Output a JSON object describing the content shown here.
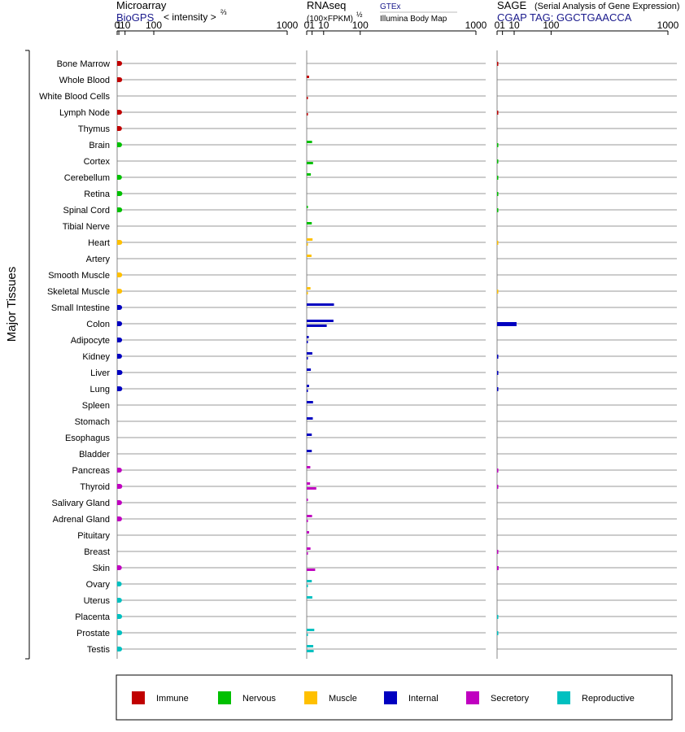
{
  "chart_data": {
    "type": "bar",
    "panels": [
      {
        "id": "microarray",
        "title": "Microarray",
        "source": "BioGPS",
        "unit": "< intensity >",
        "unit_power": "⅔",
        "ticks": [
          "0",
          "1",
          "10",
          "100",
          "1000"
        ],
        "scale": "power-2/3",
        "xlim": [
          0,
          1000
        ]
      },
      {
        "id": "rnaseq",
        "title": "RNAseq",
        "unit": "(100×FPKM)",
        "unit_power": "½",
        "source_primary": "GTEx",
        "source_secondary": "Illumina Body Map",
        "ticks": [
          "0",
          "1",
          "10",
          "100",
          "1000"
        ],
        "scale": "sqrt",
        "xlim": [
          0,
          1000
        ]
      },
      {
        "id": "sage",
        "title": "SAGE",
        "subtitle": "(Serial Analysis of Gene Expression)",
        "source": "CGAP  TAG: GGCTGAACCA",
        "ticks": [
          "0",
          "1",
          "10",
          "100",
          "1000"
        ],
        "scale": "sqrt",
        "xlim": [
          0,
          1000
        ]
      }
    ],
    "y_axis_label": "Major Tissues",
    "tissues": [
      {
        "name": "Bone Marrow",
        "group": "Immune",
        "microarray": 1.8,
        "rnaseq_gtex": null,
        "rnaseq_ibm": null,
        "sage": 0.01
      },
      {
        "name": "Whole Blood",
        "group": "Immune",
        "microarray": 1.9,
        "rnaseq_gtex": 0.2,
        "rnaseq_ibm": null,
        "sage": null
      },
      {
        "name": "White Blood Cells",
        "group": "Immune",
        "microarray": null,
        "rnaseq_gtex": null,
        "rnaseq_ibm": 0.002,
        "sage": null
      },
      {
        "name": "Lymph Node",
        "group": "Immune",
        "microarray": 1.7,
        "rnaseq_gtex": null,
        "rnaseq_ibm": 0.002,
        "sage": 0.01
      },
      {
        "name": "Thymus",
        "group": "Immune",
        "microarray": 1.6,
        "rnaseq_gtex": null,
        "rnaseq_ibm": null,
        "sage": null
      },
      {
        "name": "Brain",
        "group": "Nervous",
        "microarray": 1.7,
        "rnaseq_gtex": 1.0,
        "rnaseq_ibm": null,
        "sage": 0.005
      },
      {
        "name": "Cortex",
        "group": "Nervous",
        "microarray": null,
        "rnaseq_gtex": null,
        "rnaseq_ibm": 1.4,
        "sage": 0.005
      },
      {
        "name": "Cerebellum",
        "group": "Nervous",
        "microarray": 1.6,
        "rnaseq_gtex": 0.6,
        "rnaseq_ibm": null,
        "sage": 0.005
      },
      {
        "name": "Retina",
        "group": "Nervous",
        "microarray": 2.1,
        "rnaseq_gtex": null,
        "rnaseq_ibm": null,
        "sage": 0.005
      },
      {
        "name": "Spinal Cord",
        "group": "Nervous",
        "microarray": 1.9,
        "rnaseq_gtex": 0.002,
        "rnaseq_ibm": null,
        "sage": 0.005
      },
      {
        "name": "Tibial Nerve",
        "group": "Nervous",
        "microarray": null,
        "rnaseq_gtex": 0.9,
        "rnaseq_ibm": null,
        "sage": null
      },
      {
        "name": "Heart",
        "group": "Muscle",
        "microarray": 2.0,
        "rnaseq_gtex": 1.2,
        "rnaseq_ibm": 0.002,
        "sage": 0.002
      },
      {
        "name": "Artery",
        "group": "Muscle",
        "microarray": null,
        "rnaseq_gtex": 0.8,
        "rnaseq_ibm": null,
        "sage": null
      },
      {
        "name": "Smooth Muscle",
        "group": "Muscle",
        "microarray": 1.9,
        "rnaseq_gtex": null,
        "rnaseq_ibm": null,
        "sage": null
      },
      {
        "name": "Skeletal Muscle",
        "group": "Muscle",
        "microarray": 1.9,
        "rnaseq_gtex": 0.5,
        "rnaseq_ibm": 0.002,
        "sage": 0.002
      },
      {
        "name": "Small Intestine",
        "group": "Internal",
        "microarray": 1.8,
        "rnaseq_gtex": 26,
        "rnaseq_ibm": null,
        "sage": null
      },
      {
        "name": "Colon",
        "group": "Internal",
        "microarray": 1.8,
        "rnaseq_gtex": 25,
        "rnaseq_ibm": 14,
        "sage": 13
      },
      {
        "name": "Adipocyte",
        "group": "Internal",
        "microarray": 1.8,
        "rnaseq_gtex": 0.15,
        "rnaseq_ibm": 0.002,
        "sage": null
      },
      {
        "name": "Kidney",
        "group": "Internal",
        "microarray": 1.7,
        "rnaseq_gtex": 1.1,
        "rnaseq_ibm": 0.002,
        "sage": 0.02
      },
      {
        "name": "Liver",
        "group": "Internal",
        "microarray": 2.2,
        "rnaseq_gtex": 0.6,
        "rnaseq_ibm": null,
        "sage": 0.02
      },
      {
        "name": "Lung",
        "group": "Internal",
        "microarray": 2.0,
        "rnaseq_gtex": 0.2,
        "rnaseq_ibm": 0.002,
        "sage": 0.02
      },
      {
        "name": "Spleen",
        "group": "Internal",
        "microarray": null,
        "rnaseq_gtex": 1.4,
        "rnaseq_ibm": null,
        "sage": null
      },
      {
        "name": "Stomach",
        "group": "Internal",
        "microarray": null,
        "rnaseq_gtex": 1.3,
        "rnaseq_ibm": null,
        "sage": null
      },
      {
        "name": "Esophagus",
        "group": "Internal",
        "microarray": null,
        "rnaseq_gtex": 0.9,
        "rnaseq_ibm": null,
        "sage": null
      },
      {
        "name": "Bladder",
        "group": "Internal",
        "microarray": null,
        "rnaseq_gtex": 0.9,
        "rnaseq_ibm": null,
        "sage": null
      },
      {
        "name": "Pancreas",
        "group": "Secretory",
        "microarray": 1.6,
        "rnaseq_gtex": 0.45,
        "rnaseq_ibm": null,
        "sage": 0.01
      },
      {
        "name": "Thyroid",
        "group": "Secretory",
        "microarray": 2.0,
        "rnaseq_gtex": 0.4,
        "rnaseq_ibm": 3.2,
        "sage": 0.01
      },
      {
        "name": "Salivary Gland",
        "group": "Secretory",
        "microarray": 1.7,
        "rnaseq_gtex": 0.002,
        "rnaseq_ibm": null,
        "sage": null
      },
      {
        "name": "Adrenal Gland",
        "group": "Secretory",
        "microarray": 1.7,
        "rnaseq_gtex": 1.0,
        "rnaseq_ibm": 0.002,
        "sage": null
      },
      {
        "name": "Pituitary",
        "group": "Secretory",
        "microarray": null,
        "rnaseq_gtex": 0.2,
        "rnaseq_ibm": null,
        "sage": null
      },
      {
        "name": "Breast",
        "group": "Secretory",
        "microarray": null,
        "rnaseq_gtex": 0.5,
        "rnaseq_ibm": 0.002,
        "sage": 0.01
      },
      {
        "name": "Skin",
        "group": "Secretory",
        "microarray": 1.5,
        "rnaseq_gtex": null,
        "rnaseq_ibm": 2.5,
        "sage": 0.08
      },
      {
        "name": "Ovary",
        "group": "Reproductive",
        "microarray": 1.4,
        "rnaseq_gtex": 0.9,
        "rnaseq_ibm": 0.002,
        "sage": null
      },
      {
        "name": "Uterus",
        "group": "Reproductive",
        "microarray": 1.6,
        "rnaseq_gtex": 1.1,
        "rnaseq_ibm": null,
        "sage": null
      },
      {
        "name": "Placenta",
        "group": "Reproductive",
        "microarray": 1.8,
        "rnaseq_gtex": null,
        "rnaseq_ibm": null,
        "sage": 0.005
      },
      {
        "name": "Prostate",
        "group": "Reproductive",
        "microarray": 1.9,
        "rnaseq_gtex": 2.0,
        "rnaseq_ibm": 0.002,
        "sage": 0.005
      },
      {
        "name": "Testis",
        "group": "Reproductive",
        "microarray": 1.8,
        "rnaseq_gtex": 1.5,
        "rnaseq_ibm": 1.7,
        "sage": null
      }
    ],
    "legend": [
      {
        "label": "Immune",
        "color": "#c00000"
      },
      {
        "label": "Nervous",
        "color": "#00c000"
      },
      {
        "label": "Muscle",
        "color": "#ffc000"
      },
      {
        "label": "Internal",
        "color": "#0000c0"
      },
      {
        "label": "Secretory",
        "color": "#c000c0"
      },
      {
        "label": "Reproductive",
        "color": "#00c0c0"
      }
    ],
    "legend_placement": "bottom",
    "grid": true
  }
}
